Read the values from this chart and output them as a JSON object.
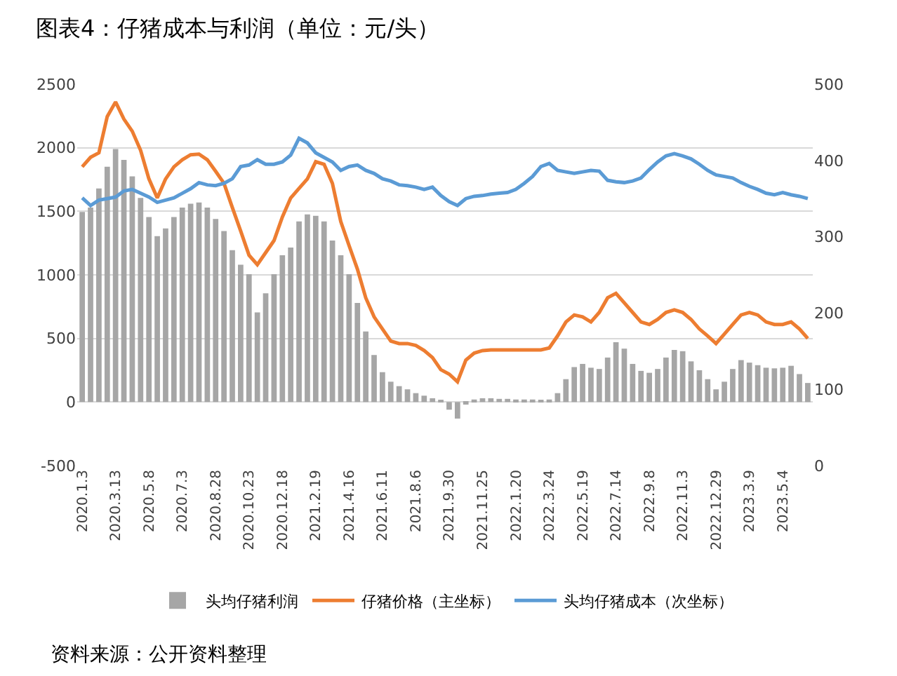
{
  "chart_data": {
    "type": "bar",
    "title": "图表4：仔猪成本与利润（单位：元/头）",
    "annotations": [
      "资料来源：公开资料整理"
    ],
    "categories": [
      "2020.1.3",
      null,
      null,
      null,
      "2020.3.13",
      null,
      null,
      null,
      "2020.5.8",
      null,
      null,
      null,
      "2020.7.3",
      null,
      null,
      null,
      "2020.8.28",
      null,
      null,
      null,
      "2020.10.23",
      null,
      null,
      null,
      "2020.12.18",
      null,
      null,
      null,
      "2021.2.19",
      null,
      null,
      null,
      "2021.4.16",
      null,
      null,
      null,
      "2021.6.11",
      null,
      null,
      null,
      "2021.8.6",
      null,
      null,
      null,
      "2021.9.30",
      null,
      null,
      null,
      "2021.11.25",
      null,
      null,
      null,
      "2022.1.20",
      null,
      null,
      null,
      "2022.3.24",
      null,
      null,
      null,
      "2022.5.19",
      null,
      null,
      null,
      "2022.7.14",
      null,
      null,
      null,
      "2022.9.8",
      null,
      null,
      null,
      "2022.11.3",
      null,
      null,
      null,
      "2022.12.29",
      null,
      null,
      null,
      "2023.3.9",
      null,
      null,
      null,
      "2023.5.4",
      null,
      null,
      null
    ],
    "series": [
      {
        "name": "头均仔猪利润",
        "color": "#a6a6a6",
        "values": [
          1495,
          1530,
          1680,
          1850,
          1990,
          1905,
          1775,
          1605,
          1455,
          1305,
          1365,
          1455,
          1530,
          1560,
          1570,
          1530,
          1440,
          1345,
          1195,
          1080,
          1005,
          705,
          855,
          1005,
          1155,
          1215,
          1420,
          1475,
          1465,
          1420,
          1270,
          1155,
          1005,
          780,
          555,
          370,
          235,
          160,
          125,
          100,
          70,
          50,
          30,
          10,
          -60,
          -130,
          -20,
          20,
          30,
          30,
          25,
          25,
          20,
          20,
          20,
          15,
          20,
          70,
          180,
          275,
          300,
          270,
          260,
          350,
          470,
          420,
          300,
          245,
          230,
          260,
          350,
          410,
          400,
          320,
          250,
          180,
          100,
          160,
          260,
          330,
          310,
          290,
          270,
          265,
          270,
          285,
          220,
          150
        ]
      },
      {
        "name": "仔猪价格（主坐标）",
        "type": "line",
        "color": "#ed7d31",
        "values": [
          1850,
          1925,
          1960,
          2245,
          2360,
          2225,
          2130,
          1980,
          1755,
          1605,
          1755,
          1850,
          1905,
          1945,
          1950,
          1905,
          1815,
          1720,
          1530,
          1345,
          1155,
          1080,
          1175,
          1270,
          1455,
          1605,
          1680,
          1755,
          1890,
          1870,
          1720,
          1420,
          1230,
          1045,
          820,
          670,
          575,
          480,
          460,
          460,
          445,
          405,
          350,
          255,
          220,
          160,
          330,
          385,
          405,
          410,
          410,
          410,
          410,
          410,
          410,
          410,
          425,
          520,
          630,
          685,
          670,
          630,
          705,
          820,
          855,
          780,
          705,
          630,
          610,
          650,
          705,
          725,
          705,
          650,
          575,
          520,
          460,
          535,
          610,
          685,
          705,
          685,
          630,
          610,
          610,
          630,
          575,
          500
        ]
      },
      {
        "name": "头均仔猪成本（次坐标）",
        "type": "line",
        "axis": "y2",
        "color": "#5b9bd5",
        "values": [
          351,
          341,
          348,
          350,
          352,
          360,
          362,
          357,
          352,
          345,
          348,
          351,
          357,
          363,
          371,
          368,
          367,
          370,
          376,
          392,
          394,
          401,
          395,
          395,
          398,
          407,
          429,
          423,
          410,
          404,
          398,
          387,
          392,
          394,
          387,
          383,
          376,
          373,
          368,
          367,
          365,
          362,
          365,
          354,
          346,
          341,
          350,
          353,
          354,
          356,
          357,
          358,
          362,
          370,
          379,
          392,
          396,
          387,
          385,
          383,
          385,
          387,
          386,
          374,
          372,
          371,
          373,
          377,
          388,
          398,
          406,
          409,
          406,
          402,
          395,
          387,
          381,
          379,
          377,
          371,
          366,
          362,
          357,
          355,
          358,
          355,
          353,
          350
        ]
      }
    ],
    "ylim": [
      -500,
      2500
    ],
    "yticks": [
      -500,
      0,
      500,
      1000,
      1500,
      2000,
      2500
    ],
    "y2lim": [
      0,
      500
    ],
    "y2ticks": [
      0,
      100,
      200,
      300,
      400,
      500
    ],
    "grid": "y",
    "legend": "bottom",
    "line_style": "solid",
    "marker": "none"
  }
}
